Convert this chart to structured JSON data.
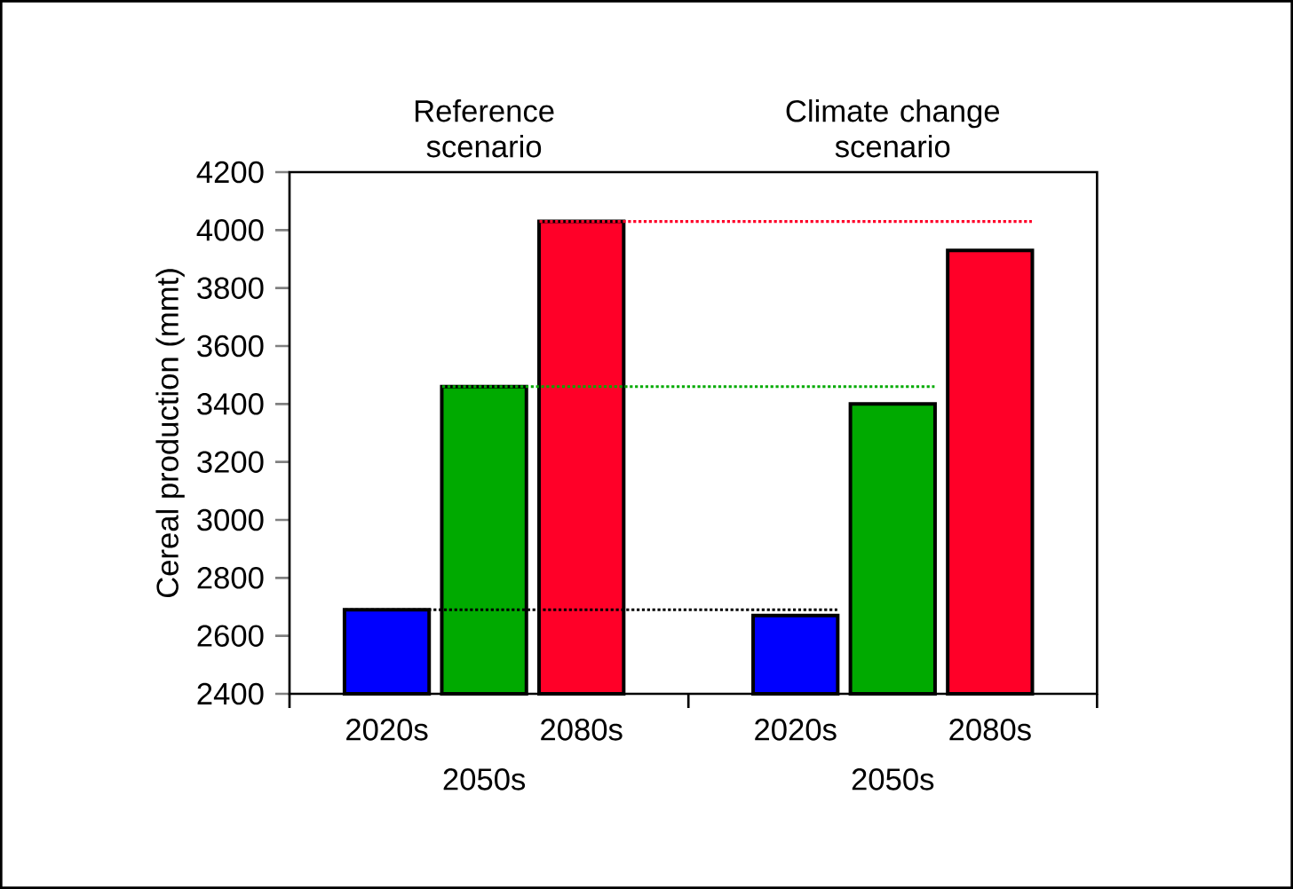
{
  "chart_data": {
    "type": "bar",
    "ylabel": "Cereal production (mmt)",
    "categories": [
      "2020s",
      "2050s",
      "2080s",
      "2020s",
      "2050s",
      "2080s"
    ],
    "values": [
      2690,
      3460,
      4030,
      2670,
      3400,
      3930
    ],
    "colors": [
      "#0000ff",
      "#00aa00",
      "#ff0028",
      "#0000ff",
      "#00aa00",
      "#ff0028"
    ],
    "ylim": [
      2400,
      4200
    ],
    "yticks": [
      2400,
      2600,
      2800,
      3000,
      3200,
      3400,
      3600,
      3800,
      4000,
      4200
    ],
    "annotations": [
      "Reference scenario",
      "Climate change scenario"
    ],
    "ref_lines": [
      {
        "axis": "y",
        "value": 2690,
        "color": "#000000",
        "line_style": "dotted"
      },
      {
        "axis": "y",
        "value": 3460,
        "color": "#00aa00",
        "line_style": "dotted"
      },
      {
        "axis": "y",
        "value": 4030,
        "color": "#ff0028",
        "line_style": "dotted"
      }
    ],
    "grid": false
  }
}
